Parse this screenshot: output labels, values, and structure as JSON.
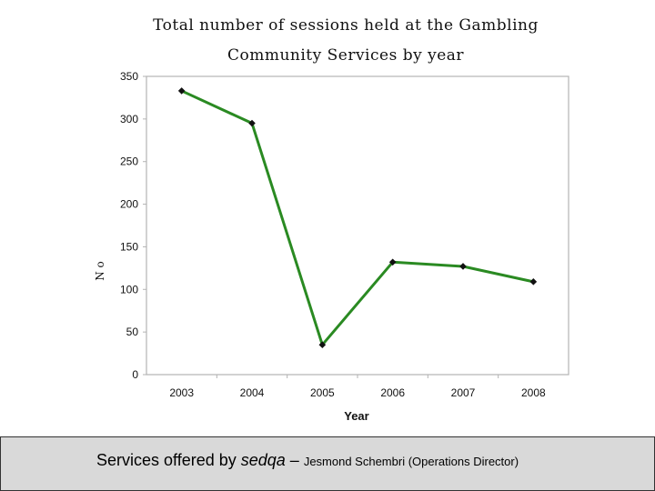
{
  "chart_data": {
    "type": "line",
    "title_lines": [
      "Total number of sessions held at the Gambling",
      "Community Services by year"
    ],
    "xlabel": "Year",
    "ylabel": "N o",
    "categories": [
      "2003",
      "2004",
      "2005",
      "2006",
      "2007",
      "2008"
    ],
    "series": [
      {
        "values": [
          333,
          295,
          35,
          132,
          127,
          109
        ]
      }
    ],
    "ylim": [
      0,
      350
    ],
    "yticks": [
      0,
      50,
      100,
      150,
      200,
      250,
      300,
      350
    ],
    "grid": false,
    "legend": "none",
    "line_color": "#2a8a22",
    "marker_color": "#111111"
  },
  "footer": {
    "main": "Services offered by ",
    "brand": "sedqa",
    "dash": " – ",
    "author": "Jesmond Schembri (Operations Director)"
  },
  "colors": {
    "background": "#ffffff",
    "footer_bg": "#d9d9d9"
  }
}
